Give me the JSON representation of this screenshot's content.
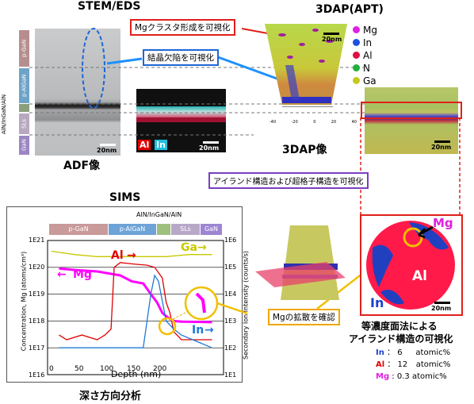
{
  "stem": {
    "title": "STEM/EDS",
    "caption": "ADF像",
    "layers": [
      "p-GaN",
      "p-AlGaN",
      "SLs",
      "GaN"
    ],
    "side_label": "AlN/InGaN/AlN",
    "scalebar": "20nm",
    "eds_labels": [
      "Al",
      "In"
    ],
    "eds_scalebar": "20nm"
  },
  "apt": {
    "title": "3DAP(APT)",
    "caption": "3DAP像",
    "scalebar": "20nm",
    "axis_ticks": [
      "-40",
      "-20",
      "0",
      "20",
      "40"
    ],
    "legend": [
      {
        "label": "Mg",
        "color": "#e020e0"
      },
      {
        "label": "In",
        "color": "#2050e0"
      },
      {
        "label": "Al",
        "color": "#e01040"
      },
      {
        "label": "N",
        "color": "#20b040"
      },
      {
        "label": "Ga",
        "color": "#c8c820"
      }
    ],
    "slice_scalebar": "20nm"
  },
  "callouts": {
    "mg_cluster": "Mgクラスタ形成を可視化",
    "crystal_defect": "結晶欠陥を可視化",
    "island": "アイランド構造および超格子構造を可視化",
    "mg_diffusion": "Mgの拡散を確認"
  },
  "sims": {
    "title": "SIMS",
    "caption": "深さ方向分析",
    "ylabel_left": "Concentration, Mg (atoms/cm³)",
    "ylabel_right": "Secondary Ion Intensity (counts/s)",
    "xlabel": "Depth (nm)",
    "bands": [
      "p-GaN",
      "p-AlGaN",
      "SLs",
      "GaN"
    ],
    "band_top_label": "AlN/InGaN/AlN",
    "yticks_left": [
      "1E21",
      "1E20",
      "1E19",
      "1E18",
      "1E17",
      "1E16"
    ],
    "yticks_right": [
      "1E6",
      "1E5",
      "1E4",
      "1E3",
      "1E2",
      "1E1"
    ],
    "xticks": [
      "0",
      "50",
      "100",
      "150",
      "200"
    ],
    "series_labels": {
      "al": "Al",
      "ga": "Ga",
      "mg": "Mg",
      "in": "In"
    }
  },
  "chart_data": {
    "type": "line",
    "xlabel": "Depth (nm)",
    "ylabel": "Concentration, Mg (atoms/cm³)",
    "xlim": [
      -15,
      215
    ],
    "ylim": [
      1e+16,
      1e+21
    ],
    "yscale": "log",
    "series": [
      {
        "name": "Mg",
        "color": "#ff00ff",
        "x": [
          0,
          20,
          50,
          80,
          95,
          110,
          120,
          128,
          135,
          140,
          145,
          150,
          160,
          200
        ],
        "y": [
          9e+19,
          8e+19,
          7e+19,
          5e+19,
          3e+19,
          2.5e+19,
          1e+19,
          5e+18,
          2e+18,
          1.5e+18,
          1.2e+18,
          1e+18,
          9.5e+17,
          9e+17
        ]
      },
      {
        "name": "Al",
        "color": "#e00000",
        "x": [
          0,
          10,
          30,
          50,
          60,
          68,
          72,
          80,
          90,
          100,
          115,
          125,
          135,
          140,
          145,
          150,
          160,
          200
        ],
        "y": [
          3e+17,
          2e+17,
          3e+17,
          2e+17,
          3e+17,
          5e+17,
          1e+20,
          1.5e+20,
          1.4e+20,
          1.3e+20,
          1.2e+20,
          1e+20,
          4e+19,
          5e+18,
          2e+18,
          4e+17,
          2e+17,
          2e+17
        ]
      },
      {
        "name": "Ga",
        "color": "#c8c800",
        "x": [
          -10,
          20,
          50,
          80,
          110,
          140,
          170,
          200
        ],
        "y": [
          4e+20,
          3e+20,
          2.5e+20,
          2.5e+20,
          2.5e+20,
          2.5e+20,
          3e+20,
          3e+20
        ]
      },
      {
        "name": "In",
        "color": "#1e78d8",
        "x": [
          0,
          50,
          90,
          100,
          110,
          120,
          125,
          130,
          140,
          150,
          160,
          200
        ],
        "y": [
          1e+17,
          1e+17,
          1e+17,
          1e+17,
          1e+17,
          1e+19,
          5e+19,
          3e+19,
          1e+18,
          5e+17,
          3e+17,
          1e+17
        ]
      }
    ]
  },
  "slice": {
    "labels": {
      "mg": "Mg",
      "al": "Al",
      "in": "In"
    },
    "scalebar": "20nm",
    "caption_line1": "等濃度面法による",
    "caption_line2": "アイランド構造の可視化",
    "composition": [
      {
        "element": "In",
        "sep": "：",
        "value": "6",
        "unit": "atomic%",
        "color": "#1e40d0"
      },
      {
        "element": "Al",
        "sep": "：",
        "value": "12",
        "unit": "atomic%",
        "color": "#e00000"
      },
      {
        "element": "Mg",
        "sep": ":",
        "value": "0.3",
        "unit": "atomic%",
        "color": "#e020e0"
      }
    ]
  }
}
